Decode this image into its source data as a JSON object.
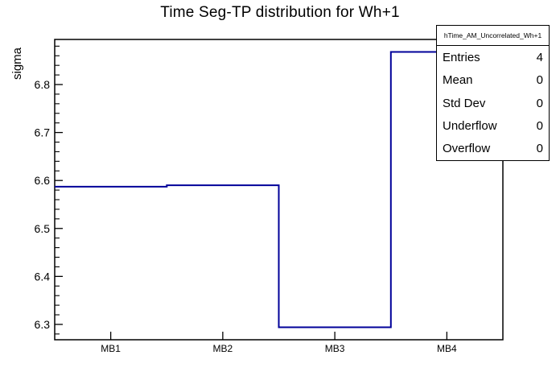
{
  "chart_data": {
    "type": "bar",
    "render_style": "step-histogram-outline",
    "title": "Time Seg-TP distribution for Wh+1",
    "xlabel": "",
    "ylabel": "sigma",
    "categories": [
      "MB1",
      "MB2",
      "MB3",
      "MB4"
    ],
    "values": [
      6.587,
      6.59,
      6.294,
      6.868
    ],
    "ylim": [
      6.268,
      6.894
    ],
    "y_major_ticks": [
      6.3,
      6.4,
      6.5,
      6.6,
      6.7,
      6.8
    ],
    "y_minor_tick_step": 0.02,
    "grid": false,
    "legend_position": "none",
    "line_color": "#000099",
    "frame_color": "#000000",
    "background_color": "#ffffff",
    "stats_box": {
      "header": "hTime_AM_Uncorrelated_Wh+1",
      "rows": [
        {
          "label": "Entries",
          "value": "4"
        },
        {
          "label": "Mean",
          "value": "0"
        },
        {
          "label": "Std Dev",
          "value": "0"
        },
        {
          "label": "Underflow",
          "value": "0"
        },
        {
          "label": "Overflow",
          "value": "0"
        }
      ]
    }
  }
}
